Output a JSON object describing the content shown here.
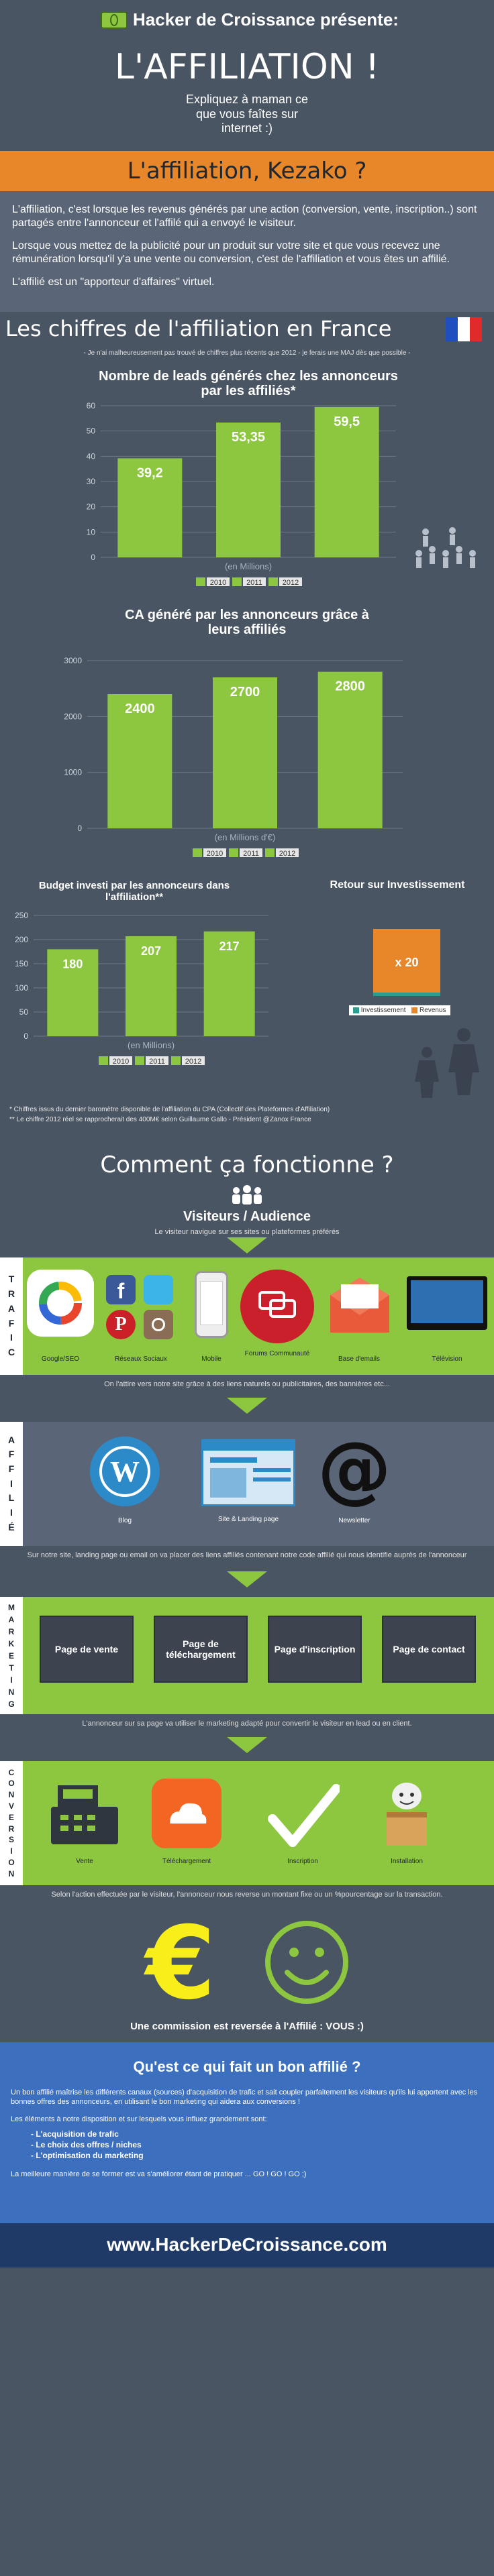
{
  "header": {
    "brand": "Hacker de Croissance présente:",
    "title": "L'AFFILIATION !",
    "subtitle": "Expliquez à maman ce que vous faîtes sur internet :)"
  },
  "kezako": {
    "heading": "L'affiliation, Kezako ?",
    "p1": "L'affiliation, c'est lorsque les revenus générés par une action (conversion, vente, inscription..) sont partagés entre l'annonceur et l'affilé qui a envoyé le visiteur.",
    "p2": "Lorsque vous mettez de la publicité pour un produit sur votre site et que vous recevez une rémunération lorsqu'il y'a une vente ou conversion, c'est de l'affiliation et vous êtes un affilié.",
    "p3": "L'affilié est un \"apporteur d'affaires\" virtuel."
  },
  "figures": {
    "heading": "Les chiffres de l'affiliation en France",
    "disclaimer": "- Je n'ai malheureusement pas trouvé de chiffres plus récents que 2012 - je ferais une MAJ dès que possible -",
    "footnote1": "* Chiffres issus du dernier baromètre disponible de l'affiliation du CPA (Collectif des Plateformes d'Affiliation)",
    "footnote2": "** Le chiffre 2012 réel se rapprocherait des 400M€ selon Guillaume Gallo - Président @Zanox France",
    "roi_title": "Retour sur Investissement",
    "roi_value": "x 20",
    "roi_legend": [
      "Investissement",
      "Revenus"
    ],
    "roi_colors": [
      "#2a9d8f",
      "#e8872a"
    ]
  },
  "chart_data": [
    {
      "type": "bar",
      "title": "Nombre de leads générés chez les annonceurs par les affiliés*",
      "categories": [
        "2010",
        "2011",
        "2012"
      ],
      "values": [
        39.2,
        53.35,
        59.5
      ],
      "labels": [
        "39,2",
        "53,35",
        "59,5"
      ],
      "xlabel": "(en Millions)",
      "ylabel": "",
      "ylim": [
        0,
        60
      ],
      "yticks": [
        "0",
        "10",
        "20",
        "30",
        "40",
        "50",
        "60"
      ]
    },
    {
      "type": "bar",
      "title": "CA généré par les annonceurs grâce à leurs affiliés",
      "categories": [
        "2010",
        "2011",
        "2012"
      ],
      "values": [
        2400,
        2700,
        2800
      ],
      "labels": [
        "2400",
        "2700",
        "2800"
      ],
      "xlabel": "(en Millions d'€)",
      "ylabel": "",
      "ylim": [
        0,
        3000
      ],
      "yticks": [
        "0",
        "1000",
        "2000",
        "3000"
      ]
    },
    {
      "type": "bar",
      "title": "Budget investi par les annonceurs dans l'affiliation**",
      "categories": [
        "2010",
        "2011",
        "2012"
      ],
      "values": [
        180,
        207,
        217
      ],
      "labels": [
        "180",
        "207",
        "217"
      ],
      "xlabel": "(en Millions)",
      "ylabel": "",
      "ylim": [
        0,
        250
      ],
      "yticks": [
        "0",
        "50",
        "100",
        "150",
        "200",
        "250"
      ]
    }
  ],
  "how": {
    "heading": "Comment ça fonctionne ?",
    "visitors_title": "Visiteurs / Audience",
    "visitors_caption": "Le visiteur navigue sur ses sites ou plateformes préférés",
    "trafic_label": [
      "T",
      "R",
      "A",
      "F",
      "I",
      "C"
    ],
    "trafic_items": [
      "Google/SEO",
      "Réseaux Sociaux",
      "Mobile",
      "Forums Communauté",
      "Base d'emails",
      "Télévision"
    ],
    "trafic_caption": "On l'attire vers notre site grâce à des liens naturels ou publicitaires, des bannières etc...",
    "affilie_label": [
      "A",
      "F",
      "F",
      "I",
      "L",
      "I",
      "É"
    ],
    "affilie_items": [
      "Blog",
      "Site & Landing page",
      "Newsletter"
    ],
    "affilie_caption": "Sur notre site, landing page ou email on va placer des liens affiliés contenant notre code affilié qui nous identifie auprès de l'annonceur",
    "marketing_label": [
      "M",
      "A",
      "R",
      "K",
      "E",
      "T",
      "I",
      "N",
      "G"
    ],
    "marketing_items": [
      "Page de vente",
      "Page de téléchargement",
      "Page d'inscription",
      "Page de contact"
    ],
    "marketing_caption": "L'annonceur sur sa page va utiliser le marketing adapté pour convertir le visiteur en lead ou en client.",
    "conversion_label": [
      "C",
      "O",
      "N",
      "V",
      "E",
      "R",
      "S",
      "I",
      "O",
      "N"
    ],
    "conversion_items": [
      "Vente",
      "Téléchargement",
      "Inscription",
      "Installation"
    ],
    "conversion_caption": "Selon l'action effectuée par le visiteur, l'annonceur nous reverse un montant fixe ou un %pourcentage sur la transaction.",
    "commission": "Une commission est reversée à l'Affilié : VOUS :)",
    "euro": "€"
  },
  "good": {
    "heading": "Qu'est ce qui fait un bon affilié ?",
    "p1": "Un bon affilié maîtrise les différents canaux (sources) d'acquisition de trafic et sait coupler parfaitement les visiteurs qu'ils lui apportent avec les bonnes offres des annonceurs, en utilisant le bon marketing qui aidera aux conversions !",
    "p2": "Les éléments à notre disposition et sur lesquels vous influez grandement sont:",
    "list": [
      "- L'acquisition de trafic",
      "- Le choix des offres / niches",
      "- L'optimisation du marketing"
    ],
    "p3": "La meilleure manière de se former est va s'améliorer étant de pratiquer ... GO ! GO ! GO ;)"
  },
  "footer": {
    "url": "www.HackerDeCroissance.com"
  }
}
